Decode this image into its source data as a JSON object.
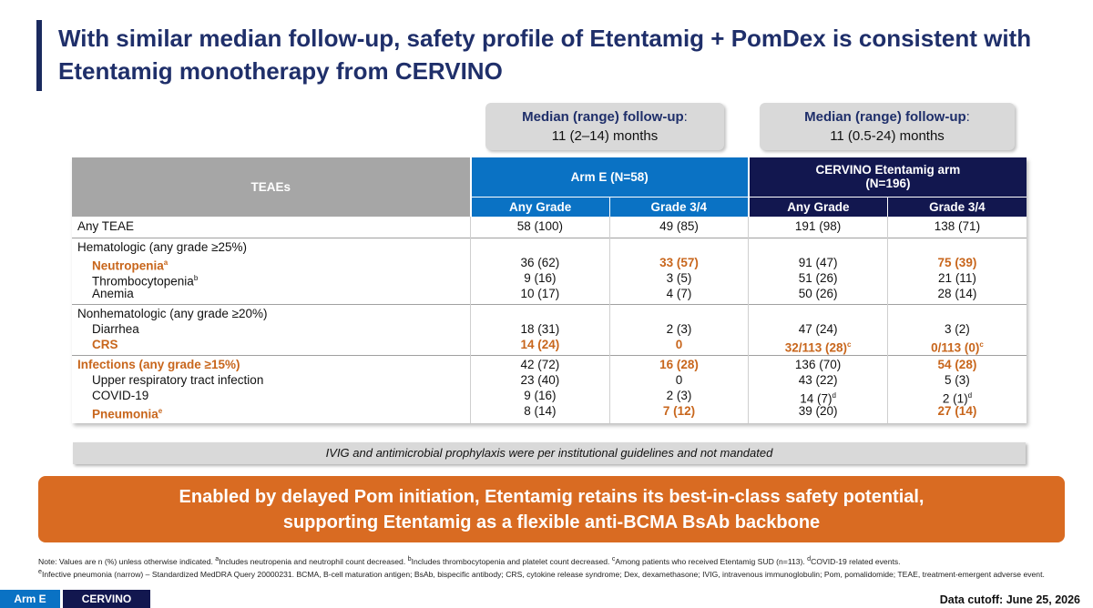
{
  "title": "With similar median follow-up, safety profile of Etentamig + PomDex is consistent with Etentamig monotherapy from CERVINO",
  "followup": {
    "arm_e": {
      "label": "Median (range) follow-up",
      "value": "11 (2–14) months"
    },
    "cervino": {
      "label": "Median (range) follow-up",
      "value": "11 (0.5-24) months"
    }
  },
  "table": {
    "teaes_header": "TEAEs",
    "arm_e_header": "Arm E (N=58)",
    "cervino_header_line1": "CERVINO Etentamig arm",
    "cervino_header_line2": "(N=196)",
    "sub": {
      "any_grade": "Any Grade",
      "grade34": "Grade 3/4"
    },
    "rows": {
      "any_teae": {
        "label": "Any TEAE",
        "v": [
          "58 (100)",
          "49 (85)",
          "191 (98)",
          "138 (71)"
        ]
      },
      "heme": {
        "label": "Hematologic (any grade ≥25%)"
      },
      "neutropenia": {
        "label": "Neutropenia",
        "sup": "a",
        "v": [
          "36 (62)",
          "33 (57)",
          "91 (47)",
          "75 (39)"
        ]
      },
      "thrombo": {
        "label": "Thrombocytopenia",
        "sup": "b",
        "v": [
          "9 (16)",
          "3 (5)",
          "51 (26)",
          "21 (11)"
        ]
      },
      "anemia": {
        "label": "Anemia",
        "v": [
          "10 (17)",
          "4 (7)",
          "50 (26)",
          "28 (14)"
        ]
      },
      "nonheme": {
        "label": "Nonhematologic (any grade ≥20%)"
      },
      "diarrhea": {
        "label": "Diarrhea",
        "v": [
          "18 (31)",
          "2 (3)",
          "47 (24)",
          "3 (2)"
        ]
      },
      "crs": {
        "label": "CRS",
        "v": [
          "14 (24)",
          "0",
          "32/113 (28)",
          "0/113 (0)"
        ],
        "sup_c": "c"
      },
      "infections": {
        "label": "Infections (any grade ≥15%)",
        "v": [
          "42 (72)",
          "16 (28)",
          "136 (70)",
          "54 (28)"
        ]
      },
      "urti": {
        "label": "Upper respiratory tract infection",
        "v": [
          "23 (40)",
          "0",
          "43 (22)",
          "5 (3)"
        ]
      },
      "covid": {
        "label": "COVID-19",
        "v": [
          "9 (16)",
          "2 (3)",
          "14 (7)",
          "2 (1)"
        ],
        "sup_d": "d"
      },
      "pneumonia": {
        "label": "Pneumonia",
        "sup": "e",
        "v": [
          "8 (14)",
          "7 (12)",
          "39 (20)",
          "27 (14)"
        ]
      }
    }
  },
  "note": "IVIG and antimicrobial prophylaxis were per institutional guidelines and not mandated",
  "banner_line1": "Enabled by delayed Pom initiation, Etentamig retains its best-in-class safety potential,",
  "banner_line2": "supporting Etentamig as a flexible anti-BCMA BsAb backbone",
  "footnote": {
    "f1": "Note: Values are n (%) unless otherwise indicated.",
    "fa": "Includes neutropenia and neutrophil count decreased.",
    "fb": "Includes thrombocytopenia and platelet count decreased.",
    "fc": "Among patients who received Etentamig SUD (n=113).",
    "fd": "COVID-19 related events.",
    "fe": "Infective pneumonia (narrow) – Standardized MedDRA Query 20000231. BCMA, B-cell maturation antigen; BsAb, bispecific antibody; CRS, cytokine release syndrome; Dex, dexamethasone; IVIG, intravenous immunoglobulin; Pom, pomalidomide; TEAE, treatment-emergent adverse event.",
    "sups": {
      "a": "a",
      "b": "b",
      "c": "c",
      "d": "d",
      "e": "e"
    }
  },
  "tags": {
    "arm_e": "Arm E",
    "cervino": "CERVINO"
  },
  "cutoff": "Data cutoff: June 25, 2026"
}
